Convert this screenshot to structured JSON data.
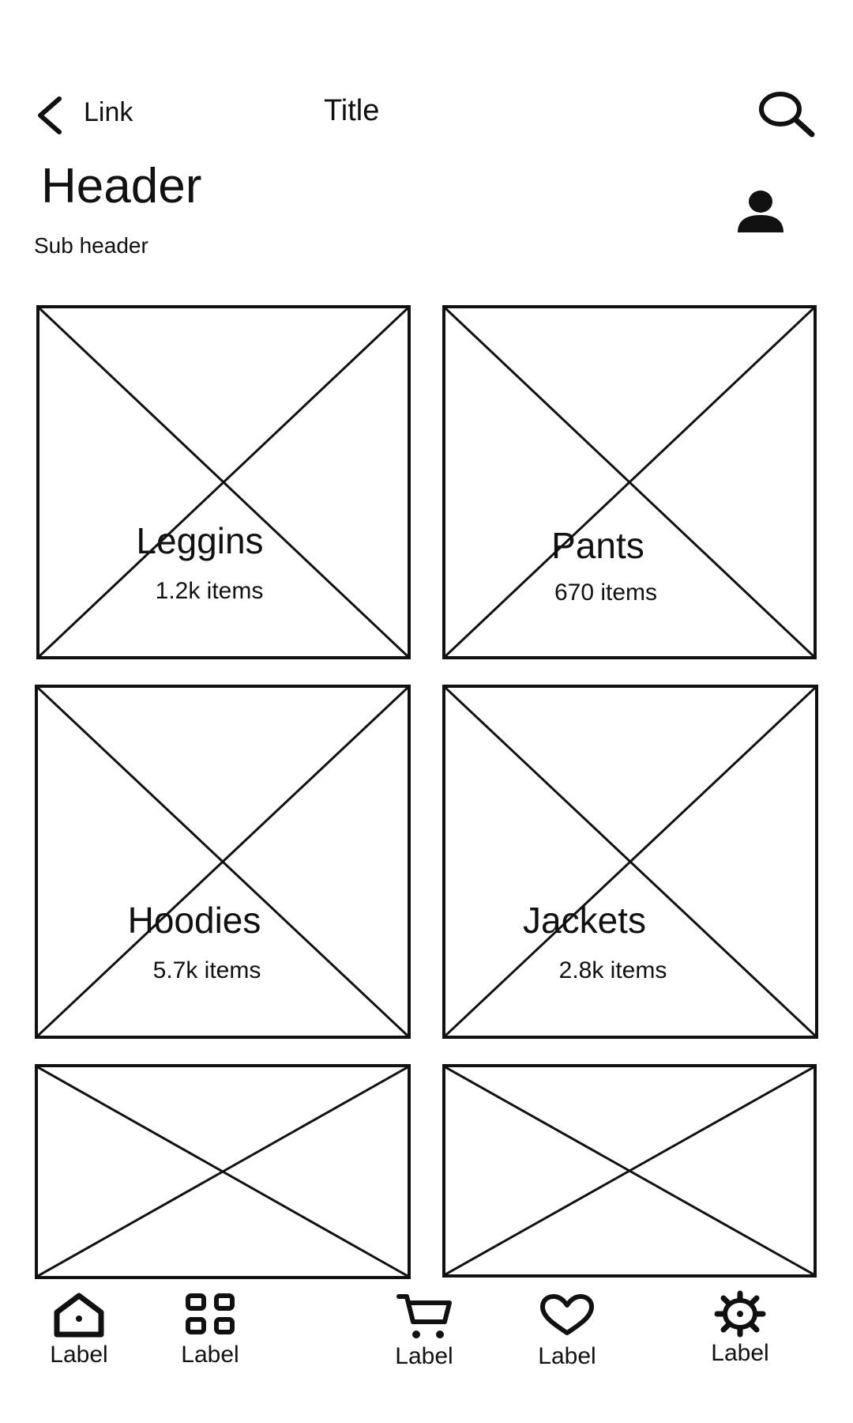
{
  "nav": {
    "back_icon": "chevron-left-icon",
    "link_label": "Link",
    "title": "Title",
    "search_icon": "search-icon"
  },
  "header": {
    "title": "Header",
    "subtitle": "Sub header",
    "avatar_icon": "user-icon"
  },
  "tiles": [
    {
      "name": "Leggins",
      "count": "1.2k items"
    },
    {
      "name": "Pants",
      "count": "670 items"
    },
    {
      "name": "Hoodies",
      "count": "5.7k items"
    },
    {
      "name": "Jackets",
      "count": "2.8k items"
    },
    {
      "name": "",
      "count": ""
    },
    {
      "name": "",
      "count": ""
    }
  ],
  "bottom_nav": [
    {
      "label": "Label",
      "icon": "home-icon"
    },
    {
      "label": "Label",
      "icon": "grid-icon"
    },
    {
      "label": "Label",
      "icon": "cart-icon"
    },
    {
      "label": "Label",
      "icon": "heart-icon"
    },
    {
      "label": "Label",
      "icon": "gear-icon"
    }
  ]
}
